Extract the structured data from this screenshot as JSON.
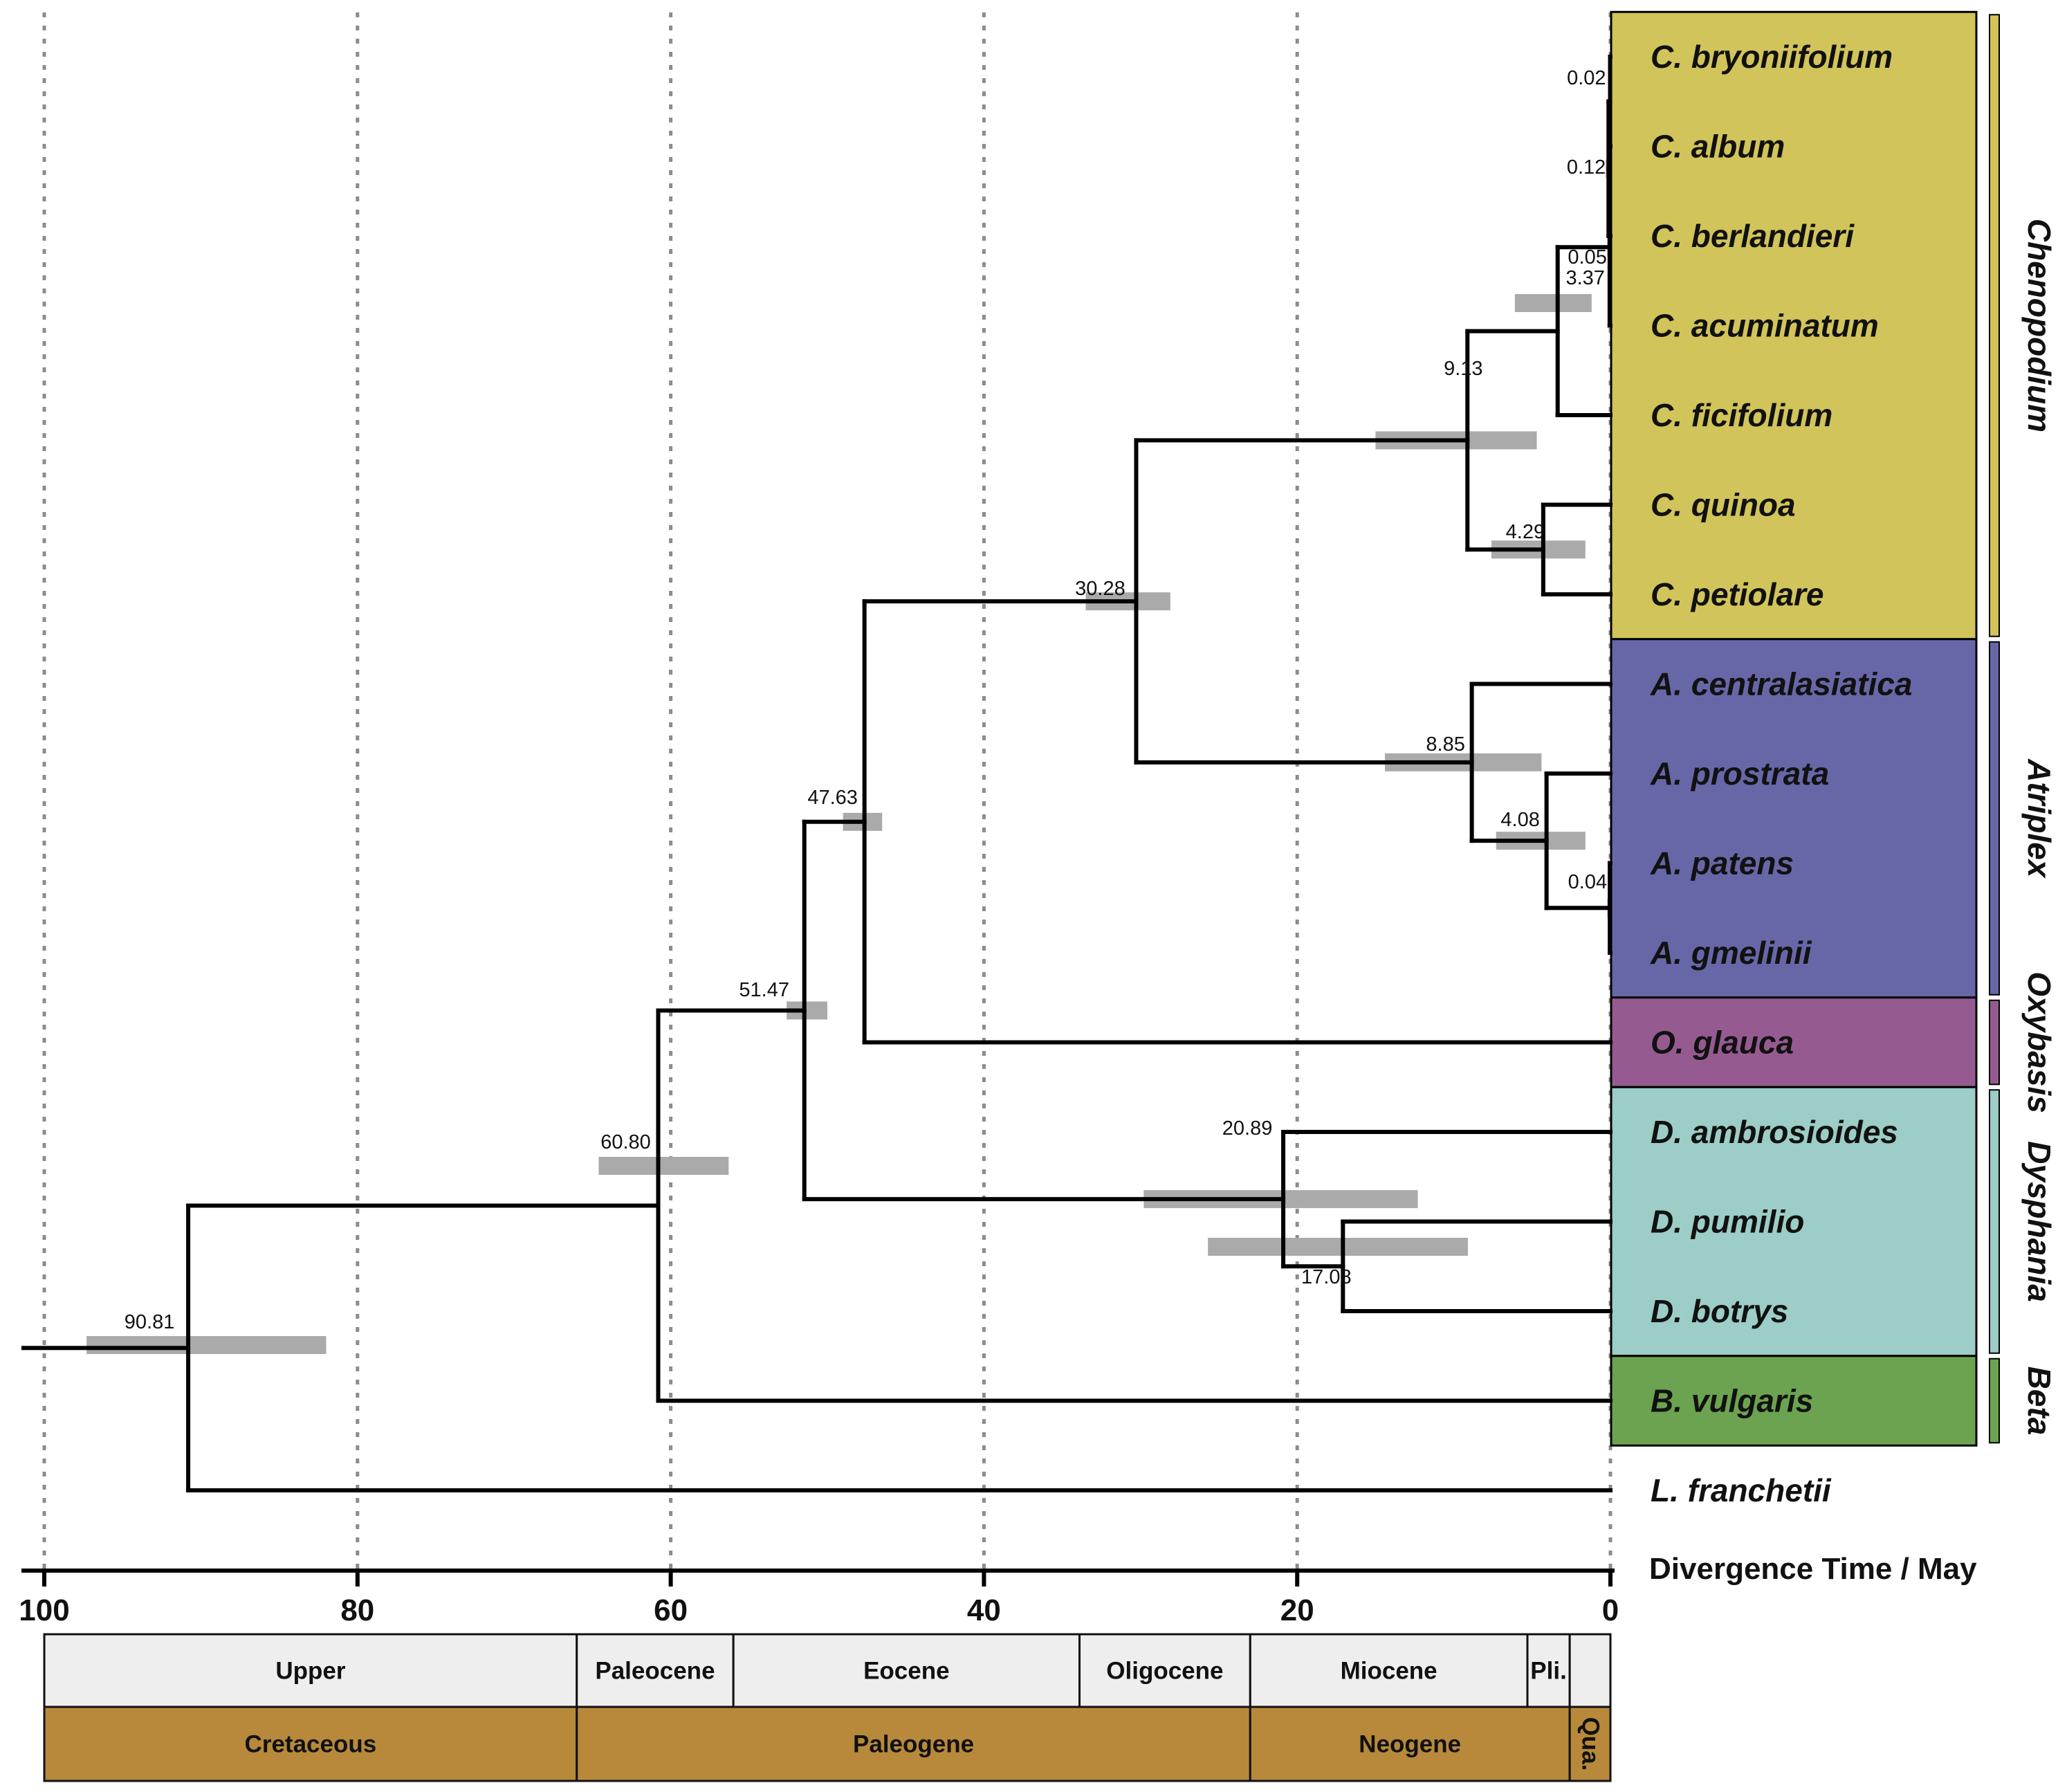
{
  "chart_data": {
    "type": "time-calibrated phylogenetic tree",
    "axis_label": "Divergence Time / May",
    "x_ticks": [
      "100",
      "80",
      "60",
      "40",
      "20",
      "0"
    ],
    "tips": [
      {
        "label": "C. bryoniifolium",
        "group": "Chenopodium"
      },
      {
        "label": "C. album",
        "group": "Chenopodium"
      },
      {
        "label": "C. berlandieri",
        "group": "Chenopodium"
      },
      {
        "label": "C. acuminatum",
        "group": "Chenopodium"
      },
      {
        "label": "C. ficifolium",
        "group": "Chenopodium"
      },
      {
        "label": "C. quinoa",
        "group": "Chenopodium"
      },
      {
        "label": "C. petiolare",
        "group": "Chenopodium"
      },
      {
        "label": "A. centralasiatica",
        "group": "Atriplex"
      },
      {
        "label": "A. prostrata",
        "group": "Atriplex"
      },
      {
        "label": "A. patens",
        "group": "Atriplex"
      },
      {
        "label": "A. gmelinii",
        "group": "Atriplex"
      },
      {
        "label": "O. glauca",
        "group": "Oxybasis"
      },
      {
        "label": "D. ambrosioides",
        "group": "Dysphania"
      },
      {
        "label": "D. pumilio",
        "group": "Dysphania"
      },
      {
        "label": "D. botrys",
        "group": "Dysphania"
      },
      {
        "label": "B. vulgaris",
        "group": "Beta"
      },
      {
        "label": "L. franchetii",
        "group": ""
      }
    ],
    "node_ages": [
      {
        "label": "0.02",
        "age": 0.02,
        "hpd": [
          0.0,
          0.1
        ]
      },
      {
        "label": "0.12",
        "age": 0.12,
        "hpd": [
          0.0,
          0.3
        ]
      },
      {
        "label": "0.05",
        "age": 0.05,
        "hpd": [
          0.0,
          0.2
        ]
      },
      {
        "label": "3.37",
        "age": 3.37,
        "hpd": [
          1.2,
          6.1
        ]
      },
      {
        "label": "4.29",
        "age": 4.29,
        "hpd": [
          1.6,
          7.6
        ]
      },
      {
        "label": "9.13",
        "age": 9.13,
        "hpd": [
          4.7,
          15.0
        ]
      },
      {
        "label": "4.08",
        "age": 4.08,
        "hpd": [
          1.6,
          7.3
        ]
      },
      {
        "label": "0.04",
        "age": 0.04,
        "hpd": [
          0.0,
          0.2
        ]
      },
      {
        "label": "8.85",
        "age": 8.85,
        "hpd": [
          4.4,
          14.4
        ]
      },
      {
        "label": "30.28",
        "age": 30.28,
        "hpd": [
          28.1,
          33.5
        ]
      },
      {
        "label": "47.63",
        "age": 47.63,
        "hpd": [
          46.5,
          49.0
        ]
      },
      {
        "label": "17.08",
        "age": 17.08,
        "hpd": [
          9.1,
          25.7
        ]
      },
      {
        "label": "20.89",
        "age": 20.89,
        "hpd": [
          12.3,
          29.8
        ]
      },
      {
        "label": "51.47",
        "age": 51.47,
        "hpd": [
          50.0,
          52.6
        ]
      },
      {
        "label": "60.80",
        "age": 60.8,
        "hpd": [
          56.3,
          64.6
        ]
      },
      {
        "label": "90.81",
        "age": 90.81,
        "hpd": [
          82.0,
          97.3
        ]
      }
    ],
    "groups": [
      {
        "name": "Chenopodium",
        "color": "#d1c45a"
      },
      {
        "name": "Atriplex",
        "color": "#6767a8"
      },
      {
        "name": "Oxybasis",
        "color": "#955b91"
      },
      {
        "name": "Dysphania",
        "color": "#9ccdc6"
      },
      {
        "name": "Beta",
        "color": "#6ca350"
      }
    ],
    "epochs": [
      {
        "label": "Upper",
        "start": 100,
        "end": 66
      },
      {
        "label": "Paleocene",
        "start": 66,
        "end": 56
      },
      {
        "label": "Eocene",
        "start": 56,
        "end": 33.9
      },
      {
        "label": "Oligocene",
        "start": 33.9,
        "end": 23
      },
      {
        "label": "Miocene",
        "start": 23,
        "end": 5.3
      },
      {
        "label": "Pli.",
        "start": 5.3,
        "end": 2.6
      },
      {
        "label": "",
        "start": 2.6,
        "end": 0
      }
    ],
    "periods": [
      {
        "label": "Cretaceous",
        "start": 100,
        "end": 66
      },
      {
        "label": "Paleogene",
        "start": 66,
        "end": 23
      },
      {
        "label": "Neogene",
        "start": 23,
        "end": 2.6
      },
      {
        "label": "Qua.",
        "start": 2.6,
        "end": 0
      }
    ],
    "colors": {
      "hpd_bar": "#aaaaaa",
      "epoch_fill": "#eeeeee",
      "period_fill": "#b8893b",
      "grid": "#8c8c8c"
    }
  }
}
